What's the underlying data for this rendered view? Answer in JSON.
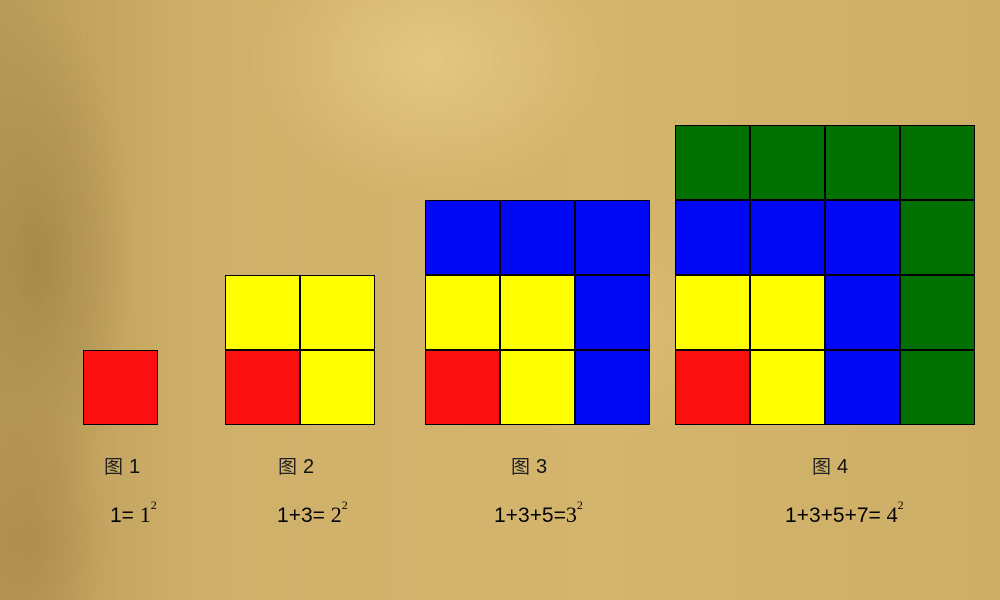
{
  "colors": {
    "R": "#fb1010",
    "Y": "#ffff00",
    "B": "#0008f4",
    "G": "#007000"
  },
  "figures": [
    {
      "caption_prefix": "图",
      "caption_number": "1",
      "lhs": "1=",
      "base": "1",
      "exponent": "2",
      "cells": [
        [
          "R"
        ]
      ]
    },
    {
      "caption_prefix": "图",
      "caption_number": "2",
      "lhs": "1+3=",
      "base": "2",
      "exponent": "2",
      "cells": [
        [
          "Y",
          "Y"
        ],
        [
          "R",
          "Y"
        ]
      ]
    },
    {
      "caption_prefix": "图",
      "caption_number": "3",
      "lhs": "1+3+5=",
      "base": "3",
      "exponent": "2",
      "cells": [
        [
          "B",
          "B",
          "B"
        ],
        [
          "Y",
          "Y",
          "B"
        ],
        [
          "R",
          "Y",
          "B"
        ]
      ]
    },
    {
      "caption_prefix": "图",
      "caption_number": "4",
      "lhs": "1+3+5+7=",
      "base": "4",
      "exponent": "2",
      "cells": [
        [
          "G",
          "G",
          "G",
          "G"
        ],
        [
          "B",
          "B",
          "B",
          "G"
        ],
        [
          "Y",
          "Y",
          "B",
          "G"
        ],
        [
          "R",
          "Y",
          "B",
          "G"
        ]
      ]
    }
  ]
}
